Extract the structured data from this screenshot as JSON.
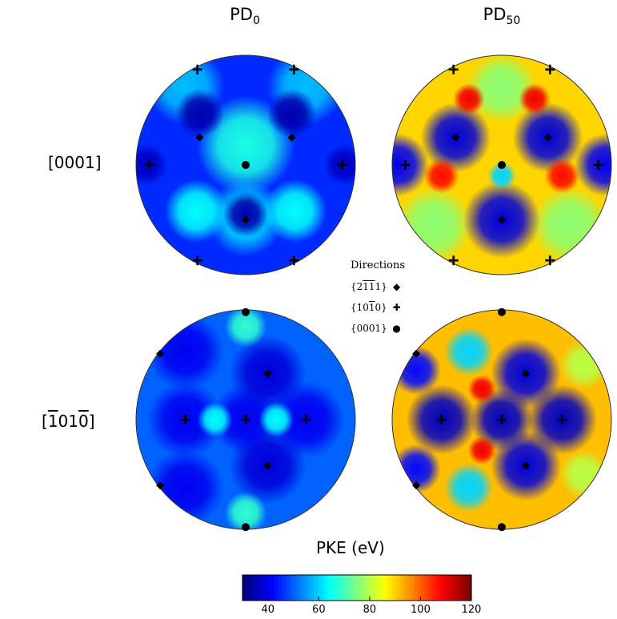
{
  "col_titles": [
    {
      "main": "PD",
      "sub": "0"
    },
    {
      "main": "PD",
      "sub": "50"
    }
  ],
  "row_labels": [
    {
      "text": "[0001]"
    },
    {
      "pre": "[",
      "bar1": "1",
      "mid": "01",
      "bar2": "0",
      "post": "]"
    }
  ],
  "legend": {
    "title": "Directions",
    "items": [
      {
        "label_parts": [
          "{2",
          "1",
          "1",
          "1}"
        ],
        "symbol": "diamond",
        "glyph": "◆"
      },
      {
        "label_parts": [
          "{10",
          "1",
          "0}"
        ],
        "symbol": "plus",
        "glyph": "✚"
      },
      {
        "label_parts": [
          "{0001}"
        ],
        "symbol": "circle",
        "glyph": "●"
      }
    ]
  },
  "colorbar": {
    "title": "PKE (eV)",
    "min": 30,
    "max": 120,
    "ticks": [
      "40",
      "60",
      "80",
      "100",
      "120"
    ],
    "tick_values": [
      40,
      60,
      80,
      100,
      120
    ],
    "colormap": "jet"
  },
  "chart_data": [
    {
      "type": "heatmap",
      "panel": "PD0 [0001]",
      "background_value": 45,
      "blobs": [
        {
          "u": 0.0,
          "v": -0.18,
          "r": 0.28,
          "val": 66
        },
        {
          "u": 0.0,
          "v": 0.48,
          "r": 0.22,
          "val": 60
        },
        {
          "u": -0.45,
          "v": 0.42,
          "r": 0.18,
          "val": 64
        },
        {
          "u": 0.45,
          "v": 0.42,
          "r": 0.18,
          "val": 64
        },
        {
          "u": -0.55,
          "v": -0.72,
          "r": 0.22,
          "val": 58
        },
        {
          "u": 0.55,
          "v": -0.72,
          "r": 0.22,
          "val": 58
        },
        {
          "u": -0.42,
          "v": -0.47,
          "r": 0.14,
          "val": 34
        },
        {
          "u": 0.42,
          "v": -0.47,
          "r": 0.14,
          "val": 34
        },
        {
          "u": 0.0,
          "v": 0.45,
          "r": 0.13,
          "val": 34
        },
        {
          "u": -0.9,
          "v": 0.0,
          "r": 0.12,
          "val": 36
        },
        {
          "u": 0.9,
          "v": 0.0,
          "r": 0.12,
          "val": 36
        }
      ],
      "markers": [
        {
          "type": "circle",
          "u": 0.0,
          "v": 0.0
        },
        {
          "type": "diamond",
          "u": -0.42,
          "v": -0.25
        },
        {
          "type": "diamond",
          "u": 0.42,
          "v": -0.25
        },
        {
          "type": "diamond",
          "u": 0.0,
          "v": 0.5
        },
        {
          "type": "plus",
          "u": -0.44,
          "v": -0.87
        },
        {
          "type": "plus",
          "u": 0.44,
          "v": -0.87
        },
        {
          "type": "plus",
          "u": -0.88,
          "v": 0.0
        },
        {
          "type": "plus",
          "u": 0.88,
          "v": 0.0
        },
        {
          "type": "plus",
          "u": -0.44,
          "v": 0.87
        },
        {
          "type": "plus",
          "u": 0.44,
          "v": 0.87
        }
      ]
    },
    {
      "type": "heatmap",
      "panel": "PD50 [0001]",
      "background_value": 90,
      "blobs": [
        {
          "u": -0.62,
          "v": 0.55,
          "r": 0.22,
          "val": 76
        },
        {
          "u": 0.62,
          "v": 0.55,
          "r": 0.22,
          "val": 76
        },
        {
          "u": 0.0,
          "v": -0.7,
          "r": 0.2,
          "val": 76
        },
        {
          "u": -0.42,
          "v": -0.25,
          "r": 0.2,
          "val": 38
        },
        {
          "u": 0.42,
          "v": -0.25,
          "r": 0.2,
          "val": 38
        },
        {
          "u": 0.0,
          "v": 0.5,
          "r": 0.22,
          "val": 38
        },
        {
          "u": -0.95,
          "v": 0.0,
          "r": 0.18,
          "val": 40
        },
        {
          "u": 0.95,
          "v": 0.0,
          "r": 0.18,
          "val": 40
        },
        {
          "u": -0.3,
          "v": -0.6,
          "r": 0.09,
          "val": 110
        },
        {
          "u": 0.3,
          "v": -0.6,
          "r": 0.09,
          "val": 110
        },
        {
          "u": -0.55,
          "v": 0.1,
          "r": 0.1,
          "val": 108
        },
        {
          "u": 0.55,
          "v": 0.1,
          "r": 0.1,
          "val": 108
        },
        {
          "u": 0.0,
          "v": 0.1,
          "r": 0.08,
          "val": 60
        }
      ],
      "markers": [
        {
          "type": "circle",
          "u": 0.0,
          "v": 0.0
        },
        {
          "type": "diamond",
          "u": -0.42,
          "v": -0.25
        },
        {
          "type": "diamond",
          "u": 0.42,
          "v": -0.25
        },
        {
          "type": "diamond",
          "u": 0.0,
          "v": 0.5
        },
        {
          "type": "plus",
          "u": -0.44,
          "v": -0.87
        },
        {
          "type": "plus",
          "u": 0.44,
          "v": -0.87
        },
        {
          "type": "plus",
          "u": -0.88,
          "v": 0.0
        },
        {
          "type": "plus",
          "u": 0.88,
          "v": 0.0
        },
        {
          "type": "plus",
          "u": -0.44,
          "v": 0.87
        },
        {
          "type": "plus",
          "u": 0.44,
          "v": 0.87
        }
      ]
    },
    {
      "type": "heatmap",
      "panel": "PD0 [-1010]",
      "background_value": 50,
      "blobs": [
        {
          "u": -0.55,
          "v": 0.0,
          "r": 0.22,
          "val": 40
        },
        {
          "u": 0.0,
          "v": 0.0,
          "r": 0.2,
          "val": 40
        },
        {
          "u": 0.55,
          "v": 0.0,
          "r": 0.22,
          "val": 40
        },
        {
          "u": 0.2,
          "v": -0.42,
          "r": 0.22,
          "val": 38
        },
        {
          "u": 0.2,
          "v": 0.42,
          "r": 0.22,
          "val": 38
        },
        {
          "u": -0.55,
          "v": -0.62,
          "r": 0.22,
          "val": 40
        },
        {
          "u": -0.55,
          "v": 0.62,
          "r": 0.22,
          "val": 40
        },
        {
          "u": -0.28,
          "v": 0.0,
          "r": 0.1,
          "val": 64
        },
        {
          "u": 0.28,
          "v": 0.0,
          "r": 0.1,
          "val": 64
        },
        {
          "u": 0.0,
          "v": -0.85,
          "r": 0.12,
          "val": 68
        },
        {
          "u": 0.0,
          "v": 0.85,
          "r": 0.12,
          "val": 68
        }
      ],
      "markers": [
        {
          "type": "plus",
          "u": -0.55,
          "v": 0.0
        },
        {
          "type": "plus",
          "u": 0.0,
          "v": 0.0
        },
        {
          "type": "plus",
          "u": 0.55,
          "v": 0.0
        },
        {
          "type": "diamond",
          "u": 0.2,
          "v": -0.42
        },
        {
          "type": "diamond",
          "u": 0.2,
          "v": 0.42
        },
        {
          "type": "diamond",
          "u": -0.78,
          "v": -0.6
        },
        {
          "type": "diamond",
          "u": -0.78,
          "v": 0.6
        },
        {
          "type": "circle",
          "u": 0.0,
          "v": -0.98
        },
        {
          "type": "circle",
          "u": 0.0,
          "v": 0.98
        }
      ]
    },
    {
      "type": "heatmap",
      "panel": "PD50 [-1010]",
      "background_value": 92,
      "blobs": [
        {
          "u": -0.55,
          "v": 0.0,
          "r": 0.2,
          "val": 36
        },
        {
          "u": 0.0,
          "v": 0.0,
          "r": 0.18,
          "val": 36
        },
        {
          "u": 0.55,
          "v": 0.0,
          "r": 0.2,
          "val": 36
        },
        {
          "u": 0.22,
          "v": -0.42,
          "r": 0.2,
          "val": 38
        },
        {
          "u": 0.22,
          "v": 0.42,
          "r": 0.2,
          "val": 38
        },
        {
          "u": -0.3,
          "v": -0.62,
          "r": 0.14,
          "val": 60
        },
        {
          "u": -0.3,
          "v": 0.62,
          "r": 0.14,
          "val": 60
        },
        {
          "u": -0.78,
          "v": -0.45,
          "r": 0.14,
          "val": 42
        },
        {
          "u": -0.78,
          "v": 0.45,
          "r": 0.14,
          "val": 42
        },
        {
          "u": 0.75,
          "v": -0.5,
          "r": 0.14,
          "val": 80
        },
        {
          "u": 0.75,
          "v": 0.5,
          "r": 0.14,
          "val": 80
        },
        {
          "u": -0.18,
          "v": -0.28,
          "r": 0.08,
          "val": 110
        },
        {
          "u": -0.18,
          "v": 0.28,
          "r": 0.08,
          "val": 110
        }
      ],
      "markers": [
        {
          "type": "plus",
          "u": -0.55,
          "v": 0.0
        },
        {
          "type": "plus",
          "u": 0.0,
          "v": 0.0
        },
        {
          "type": "plus",
          "u": 0.55,
          "v": 0.0
        },
        {
          "type": "diamond",
          "u": 0.22,
          "v": -0.42
        },
        {
          "type": "diamond",
          "u": 0.22,
          "v": 0.42
        },
        {
          "type": "diamond",
          "u": -0.78,
          "v": -0.6
        },
        {
          "type": "diamond",
          "u": -0.78,
          "v": 0.6
        },
        {
          "type": "circle",
          "u": 0.0,
          "v": -0.98
        },
        {
          "type": "circle",
          "u": 0.0,
          "v": 0.98
        }
      ]
    }
  ]
}
